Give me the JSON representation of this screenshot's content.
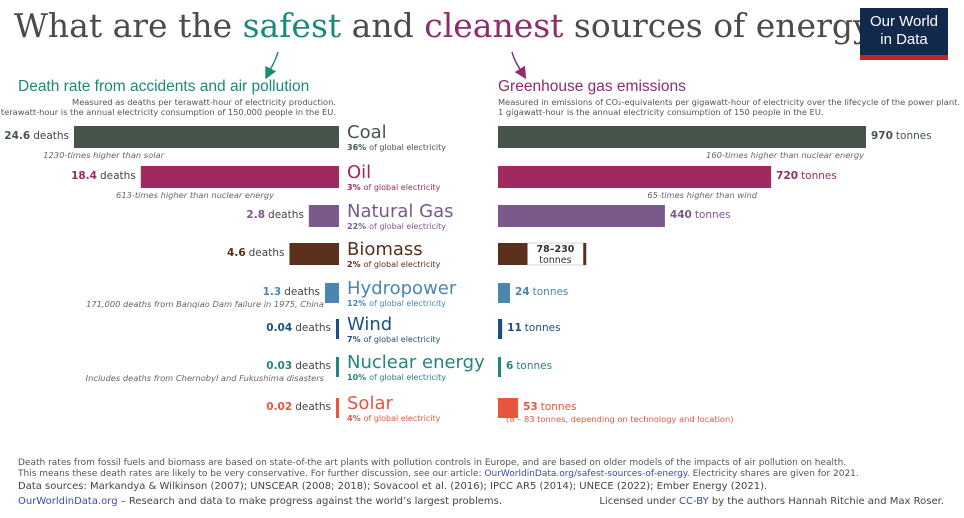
{
  "title": {
    "part1": "What are the ",
    "safest": "safest",
    "part2": " and ",
    "cleanest": "cleanest",
    "part3": " sources of energy?"
  },
  "logo": {
    "line1": "Our World",
    "line2": "in Data"
  },
  "colors": {
    "safest": "#1a8a7a",
    "cleanest": "#8c2d6e",
    "Coal": "#47544b",
    "Oil": "#9e2a60",
    "Natural Gas": "#7a5a8c",
    "Biomass": "#5a2f1c",
    "Hydropower": "#4a86b0",
    "Wind": "#1d4f82",
    "Nuclear energy": "#218580",
    "Solar": "#e8553f"
  },
  "left_panel": {
    "title": "Death rate from accidents and air pollution",
    "subtitle1": "Measured as deaths per terawatt-hour of electricity production.",
    "subtitle2": "1 terawatt-hour is the annual electricity consumption of 150,000 people in the EU."
  },
  "right_panel": {
    "title": "Greenhouse gas emissions",
    "subtitle1": "Measured in emissions of CO₂-equivalents per gigawatt-hour of electricity over the lifecycle of the power plant.",
    "subtitle2": "1 gigawatt-hour is the annual electricity consumption of 150 people in the EU."
  },
  "chart_data": [
    {
      "type": "bar",
      "title": "Death rate from accidents and air pollution",
      "unit": "deaths",
      "categories": [
        "Coal",
        "Oil",
        "Natural Gas",
        "Biomass",
        "Hydropower",
        "Wind",
        "Nuclear energy",
        "Solar"
      ],
      "values": [
        24.6,
        18.4,
        2.8,
        4.6,
        1.3,
        0.04,
        0.03,
        0.02
      ],
      "value_labels": [
        "24.6",
        "18.4",
        "2.8",
        "4.6",
        "1.3",
        "0.04",
        "0.03",
        "0.02"
      ],
      "annotations": [
        "1230-times higher than solar",
        "613-times higher than nuclear energy",
        "",
        "",
        "171,000 deaths from Banqiao Dam failure in 1975, China",
        "",
        "Includes deaths from Chernobyl and Fukushima disasters",
        ""
      ]
    },
    {
      "type": "bar",
      "title": "Greenhouse gas emissions",
      "unit": "tonnes",
      "categories": [
        "Coal",
        "Oil",
        "Natural Gas",
        "Biomass",
        "Hydropower",
        "Wind",
        "Nuclear energy",
        "Solar"
      ],
      "values": [
        970,
        720,
        440,
        154,
        24,
        11,
        6,
        53
      ],
      "range_biomass": [
        78,
        230
      ],
      "value_labels": [
        "970",
        "720",
        "440",
        "78–230",
        "24",
        "11",
        "6",
        "53"
      ],
      "annotations": [
        "160-times higher than nuclear energy",
        "65-times higher than wind",
        "",
        "",
        "",
        "",
        "",
        "(8 – 83 tonnes, depending on technology and location)"
      ]
    }
  ],
  "sources": [
    {
      "name": "Coal",
      "share": "36%",
      "share_text": "of global electricity"
    },
    {
      "name": "Oil",
      "share": "3%",
      "share_text": "of global electricity"
    },
    {
      "name": "Natural Gas",
      "share": "22%",
      "share_text": "of global electricity"
    },
    {
      "name": "Biomass",
      "share": "2%",
      "share_text": "of global electricity"
    },
    {
      "name": "Hydropower",
      "share": "12%",
      "share_text": "of global electricity"
    },
    {
      "name": "Wind",
      "share": "7%",
      "share_text": "of global electricity"
    },
    {
      "name": "Nuclear energy",
      "share": "10%",
      "share_text": "of global electricity"
    },
    {
      "name": "Solar",
      "share": "4%",
      "share_text": "of global electricity"
    }
  ],
  "footer": {
    "line1": "Death rates from fossil fuels and biomass are based on state-of-the art plants with pollution controls in Europe, and are based on older models of the impacts of air pollution on health.",
    "line2a": "This means these death rates are likely to be very conservative. For further discussion, see our article: ",
    "line2link": "OurWorldinData.org/safest-sources-of-energy",
    "line2b": ". Electricity shares are given for 2021.",
    "line3": "Data sources: Markandya & Wilkinson (2007); UNSCEAR (2008; 2018); Sovacool et al. (2016); IPCC AR5 (2014); UNECE (2022); Ember Energy (2021).",
    "line4link": "OurWorldinData.org",
    "line4": " – Research and data to make progress against the world’s largest problems.",
    "license_a": "Licensed under ",
    "license_link": "CC-BY",
    "license_b": " by the authors Hannah Ritchie and Max Roser."
  }
}
